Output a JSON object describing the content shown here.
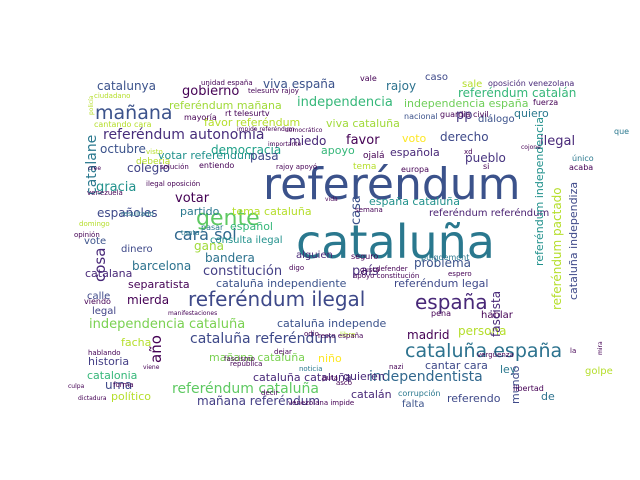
{
  "word_cloud": {
    "words": [
      {
        "text": "cataluña",
        "color": "#2a788e"
      },
      {
        "text": "referéndum",
        "color": "#3b528b"
      },
      {
        "text": "cataluña españa",
        "color": "#2c728e"
      },
      {
        "text": "referéndum ilegal",
        "color": "#3e4989"
      },
      {
        "text": "españa",
        "color": "#482878"
      },
      {
        "text": "gente",
        "color": "#5ec962"
      },
      {
        "text": "cara sol",
        "color": "#31688e"
      },
      {
        "text": "mañana",
        "color": "#3b528b"
      },
      {
        "text": "independencia cataluña",
        "color": "#7ad151"
      },
      {
        "text": "referéndum autonomía",
        "color": "#472d7b"
      },
      {
        "text": "independentista",
        "color": "#31688e"
      },
      {
        "text": "cataluña referéndum",
        "color": "#3e4989"
      },
      {
        "text": "referéndum cataluña",
        "color": "#5ec962"
      },
      {
        "text": "mañana referéndum",
        "color": "#433e85"
      },
      {
        "text": "viva españa",
        "color": "#3b528b"
      },
      {
        "text": "gobierno",
        "color": "#440154"
      },
      {
        "text": "independencia",
        "color": "#35b779"
      },
      {
        "text": "catalunya",
        "color": "#3b528b"
      },
      {
        "text": "referéndum mañana",
        "color": "#a0da39"
      },
      {
        "text": "favor referéndum",
        "color": "#b5de2b"
      },
      {
        "text": "viva cataluña",
        "color": "#a0da39"
      },
      {
        "text": "rajoy",
        "color": "#2c728e"
      },
      {
        "text": "caso",
        "color": "#3e4989"
      },
      {
        "text": "referéndum catalán",
        "color": "#35b779"
      },
      {
        "text": "independencia españa",
        "color": "#6ece58"
      },
      {
        "text": "pp",
        "color": "#453781"
      },
      {
        "text": "diálogo",
        "color": "#3b528b"
      },
      {
        "text": "quiero",
        "color": "#2a788e"
      },
      {
        "text": "favor",
        "color": "#440154"
      },
      {
        "text": "voto",
        "color": "#fde725"
      },
      {
        "text": "miedo",
        "color": "#482878"
      },
      {
        "text": "derecho",
        "color": "#3e4989"
      },
      {
        "text": "ilegal",
        "color": "#482878"
      },
      {
        "text": "octubre",
        "color": "#3b528b"
      },
      {
        "text": "votar referéndum",
        "color": "#21918c"
      },
      {
        "text": "democracia",
        "color": "#1fa088"
      },
      {
        "text": "pasa",
        "color": "#3e4989"
      },
      {
        "text": "apoyo",
        "color": "#35b779"
      },
      {
        "text": "española",
        "color": "#482878"
      },
      {
        "text": "pueblo",
        "color": "#46337f"
      },
      {
        "text": "gracia",
        "color": "#21918c"
      },
      {
        "text": "colegio",
        "color": "#414487"
      },
      {
        "text": "votar",
        "color": "#440154"
      },
      {
        "text": "españoles",
        "color": "#3e4989"
      },
      {
        "text": "partido",
        "color": "#2a788e"
      },
      {
        "text": "tema cataluña",
        "color": "#b5de2b"
      },
      {
        "text": "españa cataluña",
        "color": "#21918c"
      },
      {
        "text": "referéndum referéndum",
        "color": "#481f70"
      },
      {
        "text": "gana",
        "color": "#a0da39"
      },
      {
        "text": "español",
        "color": "#35b779"
      },
      {
        "text": "consulta ilegal",
        "color": "#21918c"
      },
      {
        "text": "bandera",
        "color": "#2c728e"
      },
      {
        "text": "constitución",
        "color": "#433e85"
      },
      {
        "text": "alguien",
        "color": "#482878"
      },
      {
        "text": "país",
        "color": "#472d7b"
      },
      {
        "text": "problema",
        "color": "#3b528b"
      },
      {
        "text": "barcelona",
        "color": "#2c728e"
      },
      {
        "text": "separatista",
        "color": "#440154"
      },
      {
        "text": "cataluña independiente",
        "color": "#3b528b"
      },
      {
        "text": "referéndum legal",
        "color": "#3e4989"
      },
      {
        "text": "catalana",
        "color": "#482878"
      },
      {
        "text": "mierda",
        "color": "#440154"
      },
      {
        "text": "cataluña independe",
        "color": "#3b528b"
      },
      {
        "text": "madrid",
        "color": "#440154"
      },
      {
        "text": "persona",
        "color": "#b5de2b"
      },
      {
        "text": "hablar",
        "color": "#440154"
      },
      {
        "text": "facha",
        "color": "#b5de2b"
      },
      {
        "text": "mañana cataluña",
        "color": "#7ad151"
      },
      {
        "text": "niño",
        "color": "#fde725"
      },
      {
        "text": "quieren",
        "color": "#482878"
      },
      {
        "text": "historia",
        "color": "#433e85"
      },
      {
        "text": "catalonia",
        "color": "#35b779"
      },
      {
        "text": "urna",
        "color": "#3e4989"
      },
      {
        "text": "político",
        "color": "#b5de2b"
      },
      {
        "text": "cataluña cataluña",
        "color": "#482878"
      },
      {
        "text": "catalán",
        "color": "#482878"
      },
      {
        "text": "referendo",
        "color": "#3e4989"
      },
      {
        "text": "falta",
        "color": "#3b528b"
      },
      {
        "text": "cantar cara",
        "color": "#3e4989"
      },
      {
        "text": "ley",
        "color": "#2a788e"
      },
      {
        "text": "de",
        "color": "#2c728e"
      },
      {
        "text": "legal",
        "color": "#414487"
      },
      {
        "text": "calle",
        "color": "#3e4989"
      },
      {
        "text": "vote",
        "color": "#3b528b"
      },
      {
        "text": "dinero",
        "color": "#3e4989"
      },
      {
        "text": "cosa",
        "color": "#482878"
      },
      {
        "text": "año",
        "color": "#440154"
      },
      {
        "text": "catalane",
        "color": "#2a788e"
      },
      {
        "text": "casa",
        "color": "#3b528b"
      },
      {
        "text": "mundo",
        "color": "#3e4989"
      },
      {
        "text": "fascista",
        "color": "#482878"
      },
      {
        "text": "referéndum independencia",
        "color": "#21918c"
      },
      {
        "text": "cataluña independiza",
        "color": "#3e4989"
      },
      {
        "text": "referéndum pactado",
        "color": "#b5de2b"
      },
      {
        "text": "sale",
        "color": "#b5de2b"
      },
      {
        "text": "oposición venezolana",
        "color": "#482878"
      },
      {
        "text": "unidad españa",
        "color": "#440154"
      },
      {
        "text": "telesurtv rajoy",
        "color": "#440154"
      },
      {
        "text": "ciudadano",
        "color": "#b5de2b"
      },
      {
        "text": "policía",
        "color": "#b5de2b"
      },
      {
        "text": "cantando cara",
        "color": "#b5de2b"
      },
      {
        "text": "mayoría",
        "color": "#440154"
      },
      {
        "text": "rt telesurtv",
        "color": "#440154"
      },
      {
        "text": "democrático",
        "color": "#440154"
      },
      {
        "text": "nacional",
        "color": "#3b528b"
      },
      {
        "text": "guardia civil",
        "color": "#440154"
      },
      {
        "text": "fuerza",
        "color": "#440154"
      },
      {
        "text": "que",
        "color": "#2a788e"
      },
      {
        "text": "solución",
        "color": "#440154"
      },
      {
        "text": "entiendo",
        "color": "#440154"
      },
      {
        "text": "visto",
        "color": "#b5de2b"
      },
      {
        "text": "deberia",
        "color": "#b5de2b"
      },
      {
        "text": "único",
        "color": "#2a788e"
      },
      {
        "text": "acaba",
        "color": "#440154"
      },
      {
        "text": "resultado",
        "color": "#2a788e"
      },
      {
        "text": "pasar",
        "color": "#2a788e"
      },
      {
        "text": "tanta",
        "color": "#2a788e"
      },
      {
        "text": "domingo",
        "color": "#b5de2b"
      },
      {
        "text": "opinión",
        "color": "#440154"
      },
      {
        "text": "viendo",
        "color": "#440154"
      },
      {
        "text": "fascismo",
        "color": "#440154"
      },
      {
        "text": "república",
        "color": "#440154"
      },
      {
        "text": "odio",
        "color": "#440154"
      },
      {
        "text": "libre",
        "color": "#b5de2b"
      },
      {
        "text": "corrupción",
        "color": "#2a788e"
      },
      {
        "text": "libertad",
        "color": "#440154"
      },
      {
        "text": "vergüenza",
        "color": "#440154"
      },
      {
        "text": "golpe",
        "color": "#b5de2b"
      },
      {
        "text": "resto españa",
        "color": "#440154"
      },
      {
        "text": "seguro",
        "color": "#440154"
      },
      {
        "text": "puigdemont",
        "color": "#2a788e"
      },
      {
        "text": "nazi",
        "color": "#440154"
      },
      {
        "text": "dictadura",
        "color": "#440154"
      },
      {
        "text": "venezolana impide",
        "color": "#440154"
      },
      {
        "text": "noticia",
        "color": "#2a788e"
      },
      {
        "text": "pena",
        "color": "#440154"
      },
      {
        "text": "asco",
        "color": "#440154"
      },
      {
        "text": "hablando",
        "color": "#440154"
      },
      {
        "text": "forma",
        "color": "#440154"
      },
      {
        "text": "dejar",
        "color": "#440154"
      },
      {
        "text": "decir",
        "color": "#440154"
      },
      {
        "text": "manifestaciones",
        "color": "#440154"
      },
      {
        "text": "europa",
        "color": "#440154"
      },
      {
        "text": "la",
        "color": "#440154"
      },
      {
        "text": "xd",
        "color": "#440154"
      },
      {
        "text": "rajoy apoyó",
        "color": "#440154"
      },
      {
        "text": "impide referéndum",
        "color": "#440154"
      },
      {
        "text": "cree",
        "color": "#440154"
      },
      {
        "text": "venezuela",
        "color": "#440154"
      },
      {
        "text": "defender",
        "color": "#440154"
      },
      {
        "text": "espero",
        "color": "#440154"
      },
      {
        "text": "vida",
        "color": "#440154"
      },
      {
        "text": "ojalá",
        "color": "#440154"
      },
      {
        "text": "tema",
        "color": "#b5de2b"
      },
      {
        "text": "digo",
        "color": "#440154"
      },
      {
        "text": "puta",
        "color": "#440154"
      },
      {
        "text": "culpa",
        "color": "#440154"
      },
      {
        "text": "viene",
        "color": "#440154"
      },
      {
        "text": "importante",
        "color": "#440154"
      },
      {
        "text": "vale",
        "color": "#440154"
      },
      {
        "text": "si",
        "color": "#440154"
      },
      {
        "text": "cojone",
        "color": "#440154"
      },
      {
        "text": "semana",
        "color": "#440154"
      },
      {
        "text": "gusta",
        "color": "#440154"
      },
      {
        "text": "apoyo constitución",
        "color": "#440154"
      },
      {
        "text": "mira",
        "color": "#440154"
      },
      {
        "text": "ilegal oposición",
        "color": "#440154"
      },
      {
        "text": "visto",
        "color": "#440154"
      }
    ]
  }
}
